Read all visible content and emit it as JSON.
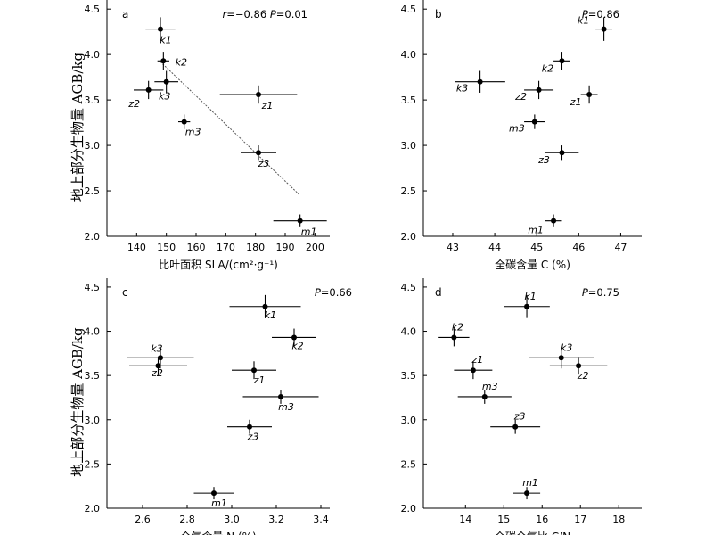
{
  "chart_data": [
    {
      "id": "a",
      "type": "scatter",
      "panel_label": "a",
      "xlabel": "比叶面积 SLA/(cm²·g⁻¹)",
      "ylabel": "地上部分生物量 AGB/kg",
      "xlim": [
        130,
        205
      ],
      "ylim": [
        2.0,
        4.6
      ],
      "xticks": [
        140,
        150,
        160,
        170,
        180,
        190,
        200
      ],
      "yticks": [
        2.0,
        2.5,
        3.0,
        3.5,
        4.0,
        4.5
      ],
      "stat": {
        "r_symbol": "r",
        "r_value": "=−0.86",
        "p_symbol": "P",
        "p_value": "=0.01"
      },
      "trendline": {
        "x": [
          148,
          195
        ],
        "y": [
          3.92,
          2.45
        ]
      },
      "points": [
        {
          "label": "k1",
          "x": 148,
          "y": 4.28,
          "x_err": 5,
          "y_err": 0.13
        },
        {
          "label": "k2",
          "x": 149,
          "y": 3.93,
          "x_err": 2,
          "y_err": 0.1
        },
        {
          "label": "k3",
          "x": 150,
          "y": 3.7,
          "x_err": 4,
          "y_err": 0.12
        },
        {
          "label": "z2",
          "x": 144,
          "y": 3.61,
          "x_err": 5,
          "y_err": 0.1
        },
        {
          "label": "z1",
          "x": 181,
          "y": 3.56,
          "x_err": 13,
          "y_err": 0.1
        },
        {
          "label": "m3",
          "x": 156,
          "y": 3.26,
          "x_err": 2,
          "y_err": 0.08
        },
        {
          "label": "z3",
          "x": 181,
          "y": 2.92,
          "x_err": 6,
          "y_err": 0.08
        },
        {
          "label": "m1",
          "x": 195,
          "y": 2.17,
          "x_err": 9,
          "y_err": 0.07
        }
      ]
    },
    {
      "id": "b",
      "type": "scatter",
      "panel_label": "b",
      "xlabel": "全碳含量 C (%)",
      "ylabel": "",
      "xlim": [
        42.3,
        47.5
      ],
      "ylim": [
        2.0,
        4.6
      ],
      "xticks": [
        43,
        44,
        45,
        46,
        47
      ],
      "yticks": [
        2.0,
        2.5,
        3.0,
        3.5,
        4.0,
        4.5
      ],
      "stat": {
        "p_symbol": "P",
        "p_value": "=0.86"
      },
      "points": [
        {
          "label": "k1",
          "x": 46.6,
          "y": 4.28,
          "x_err": 0.2,
          "y_err": 0.13
        },
        {
          "label": "k2",
          "x": 45.6,
          "y": 3.93,
          "x_err": 0.2,
          "y_err": 0.1
        },
        {
          "label": "k3",
          "x": 43.65,
          "y": 3.7,
          "x_err": 0.6,
          "y_err": 0.12
        },
        {
          "label": "z2",
          "x": 45.05,
          "y": 3.61,
          "x_err": 0.35,
          "y_err": 0.1
        },
        {
          "label": "z1",
          "x": 46.25,
          "y": 3.56,
          "x_err": 0.2,
          "y_err": 0.1
        },
        {
          "label": "m3",
          "x": 44.95,
          "y": 3.26,
          "x_err": 0.25,
          "y_err": 0.08
        },
        {
          "label": "z3",
          "x": 45.6,
          "y": 2.92,
          "x_err": 0.4,
          "y_err": 0.08
        },
        {
          "label": "m1",
          "x": 45.4,
          "y": 2.17,
          "x_err": 0.2,
          "y_err": 0.07
        }
      ]
    },
    {
      "id": "c",
      "type": "scatter",
      "panel_label": "c",
      "xlabel": "全氮含量 N (%)",
      "ylabel": "地上部分生物量 AGB/kg",
      "xlim": [
        2.44,
        3.44
      ],
      "ylim": [
        2.0,
        4.6
      ],
      "xticks": [
        2.6,
        2.8,
        3.0,
        3.2,
        3.4
      ],
      "yticks": [
        2.0,
        2.5,
        3.0,
        3.5,
        4.0,
        4.5
      ],
      "stat": {
        "p_symbol": "P",
        "p_value": "=0.66"
      },
      "points": [
        {
          "label": "k1",
          "x": 3.15,
          "y": 4.28,
          "x_err": 0.16,
          "y_err": 0.13
        },
        {
          "label": "k2",
          "x": 3.28,
          "y": 3.93,
          "x_err": 0.1,
          "y_err": 0.1
        },
        {
          "label": "k3",
          "x": 2.68,
          "y": 3.7,
          "x_err": 0.15,
          "y_err": 0.12
        },
        {
          "label": "z2",
          "x": 2.67,
          "y": 3.61,
          "x_err": 0.13,
          "y_err": 0.1
        },
        {
          "label": "z1",
          "x": 3.1,
          "y": 3.56,
          "x_err": 0.1,
          "y_err": 0.1
        },
        {
          "label": "m3",
          "x": 3.22,
          "y": 3.26,
          "x_err": 0.17,
          "y_err": 0.08
        },
        {
          "label": "z3",
          "x": 3.08,
          "y": 2.92,
          "x_err": 0.1,
          "y_err": 0.08
        },
        {
          "label": "m1",
          "x": 2.92,
          "y": 2.17,
          "x_err": 0.09,
          "y_err": 0.07
        }
      ]
    },
    {
      "id": "d",
      "type": "scatter",
      "panel_label": "d",
      "xlabel": "全碳全氮比 C/N",
      "ylabel": "",
      "xlim": [
        12.9,
        18.6
      ],
      "ylim": [
        2.0,
        4.6
      ],
      "xticks": [
        14,
        15,
        16,
        17,
        18
      ],
      "yticks": [
        2.0,
        2.5,
        3.0,
        3.5,
        4.0,
        4.5
      ],
      "stat": {
        "p_symbol": "P",
        "p_value": "=0.75"
      },
      "points": [
        {
          "label": "k1",
          "x": 15.6,
          "y": 4.28,
          "x_err": 0.6,
          "y_err": 0.13
        },
        {
          "label": "k2",
          "x": 13.7,
          "y": 3.93,
          "x_err": 0.4,
          "y_err": 0.1
        },
        {
          "label": "k3",
          "x": 16.5,
          "y": 3.7,
          "x_err": 0.85,
          "y_err": 0.12
        },
        {
          "label": "z2",
          "x": 16.95,
          "y": 3.61,
          "x_err": 0.75,
          "y_err": 0.1
        },
        {
          "label": "z1",
          "x": 14.2,
          "y": 3.56,
          "x_err": 0.5,
          "y_err": 0.1
        },
        {
          "label": "m3",
          "x": 14.5,
          "y": 3.26,
          "x_err": 0.7,
          "y_err": 0.08
        },
        {
          "label": "z3",
          "x": 15.3,
          "y": 2.92,
          "x_err": 0.65,
          "y_err": 0.08
        },
        {
          "label": "m1",
          "x": 15.6,
          "y": 2.17,
          "x_err": 0.35,
          "y_err": 0.07
        }
      ]
    }
  ]
}
